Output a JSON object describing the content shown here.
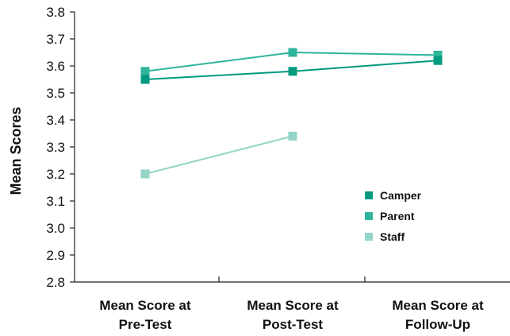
{
  "chart_data": {
    "type": "line",
    "title": "",
    "xlabel": "",
    "ylabel": "Mean Scores",
    "categories": [
      [
        "Mean Score at",
        "Pre-Test"
      ],
      [
        "Mean Score at",
        "Post-Test"
      ],
      [
        "Mean Score at",
        "Follow-Up"
      ]
    ],
    "ylim": [
      2.8,
      3.8
    ],
    "yticks": [
      "3.8",
      "3.7",
      "3.6",
      "3.5",
      "3.4",
      "3.3",
      "3.2",
      "3.1",
      "3.0",
      "2.9",
      "2.8"
    ],
    "grid": false,
    "legend_position": "lower-right",
    "series": [
      {
        "name": "Camper",
        "color": "#009a7f",
        "values": [
          3.55,
          3.58,
          3.62
        ]
      },
      {
        "name": "Parent",
        "color": "#2fb59b",
        "values": [
          3.58,
          3.65,
          3.64
        ]
      },
      {
        "name": "Staff",
        "color": "#93d5c6",
        "values": [
          3.2,
          3.34,
          null
        ]
      }
    ]
  }
}
